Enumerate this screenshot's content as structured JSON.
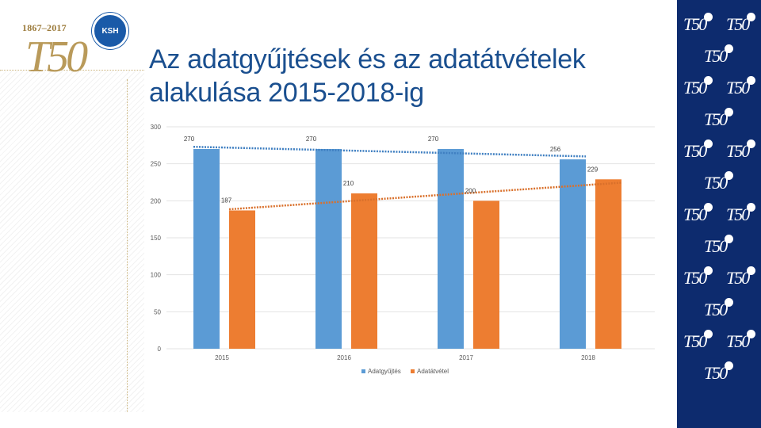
{
  "brand": {
    "years": "1867–2017",
    "mark": "T50",
    "badge": "KSH"
  },
  "title_lines": [
    "Az adatgyűjtések és az adatátvételek",
    "alakulása 2015-2018-ig"
  ],
  "chart_data": {
    "type": "bar",
    "categories": [
      "2015",
      "2016",
      "2017",
      "2018"
    ],
    "series": [
      {
        "name": "Adatgyűjtés",
        "values": [
          270,
          270,
          270,
          256
        ],
        "color": "#5b9bd5",
        "trendline": true
      },
      {
        "name": "Adatátvétel",
        "values": [
          187,
          210,
          200,
          229
        ],
        "color": "#ed7d31",
        "trendline": true
      }
    ],
    "data_labels": {
      "Adatgyűjtés": [
        "270",
        "270",
        "270",
        "256"
      ],
      "Adatátvétel": [
        "187",
        "210",
        "200",
        "229"
      ]
    },
    "yticks": [
      "0",
      "50",
      "100",
      "150",
      "200",
      "250",
      "300"
    ],
    "ylim": [
      0,
      300
    ],
    "grid": true,
    "legend_position": "bottom",
    "title": "",
    "xlabel": "",
    "ylabel": ""
  },
  "colors": {
    "title": "#1a4f8f",
    "panel": "#0d2b6e",
    "gold": "#b99a5a"
  }
}
